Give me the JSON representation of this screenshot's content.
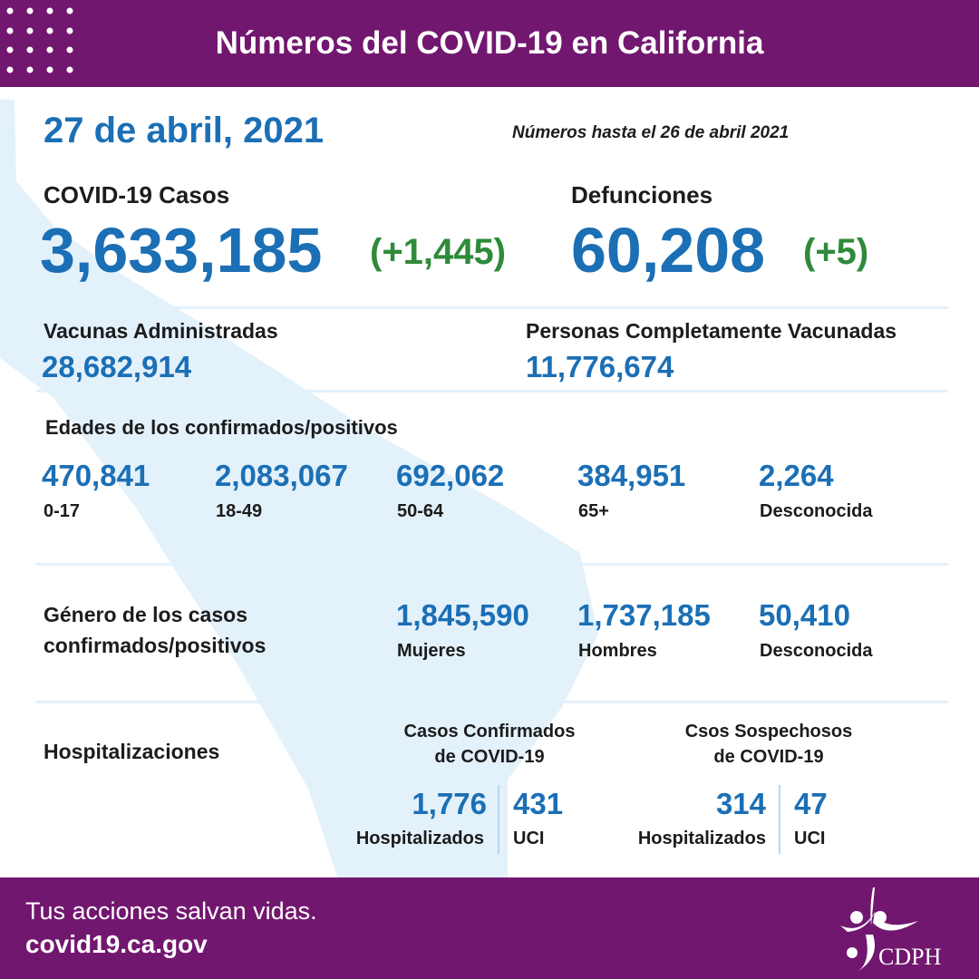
{
  "header": {
    "title": "Números del COVID-19 en California"
  },
  "date": "27 de abril, 2021",
  "as_of": "Números hasta el 26 de abril 2021",
  "cases": {
    "label": "COVID-19 Casos",
    "value": "3,633,185",
    "change": "(+1,445)"
  },
  "deaths": {
    "label": "Defunciones",
    "value": "60,208",
    "change": "(+5)"
  },
  "vaccines": {
    "label": "Vacunas Administradas",
    "value": "28,682,914"
  },
  "fully_vaccinated": {
    "label": "Personas Completamente Vacunadas",
    "value": "11,776,674"
  },
  "ages": {
    "heading": "Edades de los confirmados/positivos",
    "items": [
      {
        "value": "470,841",
        "label": "0-17"
      },
      {
        "value": "2,083,067",
        "label": "18-49"
      },
      {
        "value": "692,062",
        "label": "50-64"
      },
      {
        "value": "384,951",
        "label": "65+"
      },
      {
        "value": "2,264",
        "label": "Desconocida"
      }
    ]
  },
  "gender": {
    "heading_line1": "Género de los casos",
    "heading_line2": "confirmados/positivos",
    "items": [
      {
        "value": "1,845,590",
        "label": "Mujeres"
      },
      {
        "value": "1,737,185",
        "label": "Hombres"
      },
      {
        "value": "50,410",
        "label": "Desconocida"
      }
    ]
  },
  "hospital": {
    "heading": "Hospitalizaciones",
    "confirmed": {
      "title1": "Casos Confirmados",
      "title2": "de COVID-19",
      "hosp_value": "1,776",
      "hosp_label": "Hospitalizados",
      "icu_value": "431",
      "icu_label": "UCI"
    },
    "suspected": {
      "title1": "Csos Sospechosos",
      "title2": "de COVID-19",
      "hosp_value": "314",
      "hosp_label": "Hospitalizados",
      "icu_value": "47",
      "icu_label": "UCI"
    }
  },
  "footer": {
    "tagline": "Tus acciones salvan vidas.",
    "url": "covid19.ca.gov",
    "logo_text": "CDPH"
  },
  "colors": {
    "purple": "#72176f",
    "blue": "#1b6fb5",
    "green": "#2f8a3a",
    "map": "#e3f1fb"
  }
}
